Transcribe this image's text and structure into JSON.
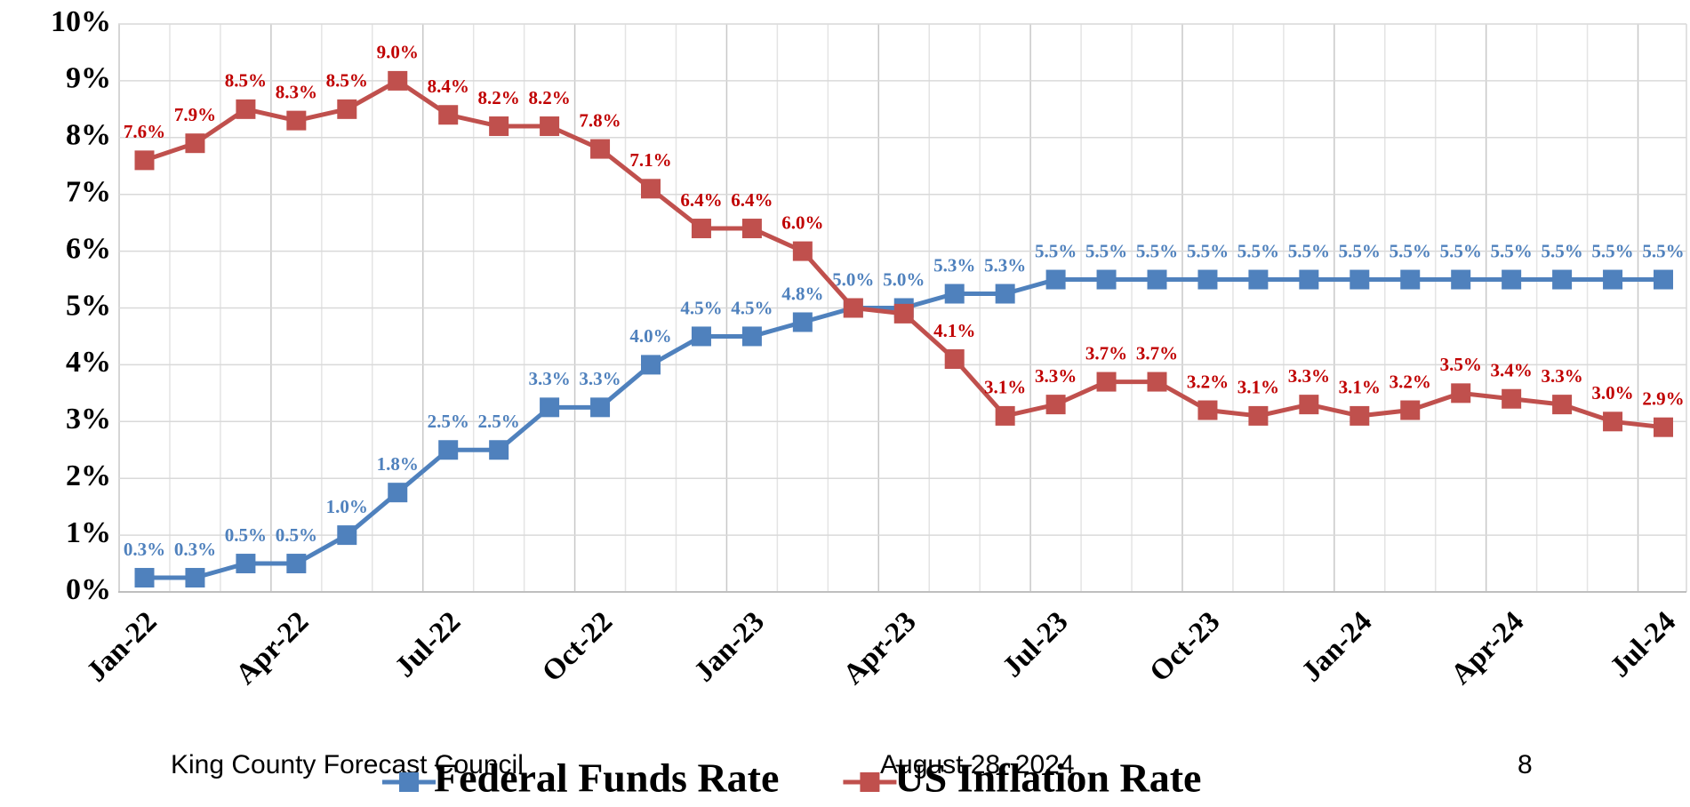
{
  "chart_data": {
    "type": "line",
    "categories": [
      "Jan-22",
      null,
      null,
      "Apr-22",
      null,
      null,
      "Jul-22",
      null,
      null,
      "Oct-22",
      null,
      null,
      "Jan-23",
      null,
      null,
      "Apr-23",
      null,
      null,
      "Jul-23",
      null,
      null,
      "Oct-23",
      null,
      null,
      "Jan-24",
      null,
      null,
      "Apr-24",
      null,
      null,
      "Jul-24"
    ],
    "series": [
      {
        "name": "Federal Funds Rate",
        "color": "#4f81bd",
        "label_color": "#4f81bd",
        "values": [
          0.25,
          0.25,
          0.5,
          0.5,
          1.0,
          1.75,
          2.5,
          2.5,
          3.25,
          3.25,
          4.0,
          4.5,
          4.5,
          4.75,
          5.0,
          5.0,
          5.25,
          5.25,
          5.5,
          5.5,
          5.5,
          5.5,
          5.5,
          5.5,
          5.5,
          5.5,
          5.5,
          5.5,
          5.5,
          5.5,
          5.5
        ],
        "value_labels": [
          "0.3%",
          "0.3%",
          "0.5%",
          "0.5%",
          "1.0%",
          "1.8%",
          "2.5%",
          "2.5%",
          "3.3%",
          "3.3%",
          "4.0%",
          "4.5%",
          "4.5%",
          "4.8%",
          "5.0%",
          "5.0%",
          "5.3%",
          "5.3%",
          "5.5%",
          "5.5%",
          "5.5%",
          "5.5%",
          "5.5%",
          "5.5%",
          "5.5%",
          "5.5%",
          "5.5%",
          "5.5%",
          "5.5%",
          "5.5%",
          "5.5%"
        ]
      },
      {
        "name": "US Inflation Rate",
        "color": "#c0504d",
        "label_color": "#c00000",
        "values": [
          7.6,
          7.9,
          8.5,
          8.3,
          8.5,
          9.0,
          8.4,
          8.2,
          8.2,
          7.8,
          7.1,
          6.4,
          6.4,
          6.0,
          5.0,
          4.9,
          4.1,
          3.1,
          3.3,
          3.7,
          3.7,
          3.2,
          3.1,
          3.3,
          3.1,
          3.2,
          3.5,
          3.4,
          3.3,
          3.0,
          2.9
        ],
        "value_labels": [
          "7.6%",
          "7.9%",
          "8.5%",
          "8.3%",
          "8.5%",
          "9.0%",
          "8.4%",
          "8.2%",
          "8.2%",
          "7.8%",
          "7.1%",
          "6.4%",
          "6.4%",
          "6.0%",
          null,
          null,
          "4.1%",
          "3.1%",
          "3.3%",
          "3.7%",
          "3.7%",
          "3.2%",
          "3.1%",
          "3.3%",
          "3.1%",
          "3.2%",
          "3.5%",
          "3.4%",
          "3.3%",
          "3.0%",
          "2.9%"
        ]
      }
    ],
    "ylim": [
      0,
      10
    ],
    "yticks": [
      {
        "value": 0,
        "label": "0%"
      },
      {
        "value": 1,
        "label": "1%"
      },
      {
        "value": 2,
        "label": "2%"
      },
      {
        "value": 3,
        "label": "3%"
      },
      {
        "value": 4,
        "label": "4%"
      },
      {
        "value": 5,
        "label": "5%"
      },
      {
        "value": 6,
        "label": "6%"
      },
      {
        "value": 7,
        "label": "7%"
      },
      {
        "value": 8,
        "label": "8%"
      },
      {
        "value": 9,
        "label": "9%"
      },
      {
        "value": 10,
        "label": "10%"
      }
    ],
    "grid": true,
    "legend": "bottom"
  },
  "footer": {
    "left": "King County Forecast Council",
    "center": "August 28, 2024",
    "right": "8"
  }
}
